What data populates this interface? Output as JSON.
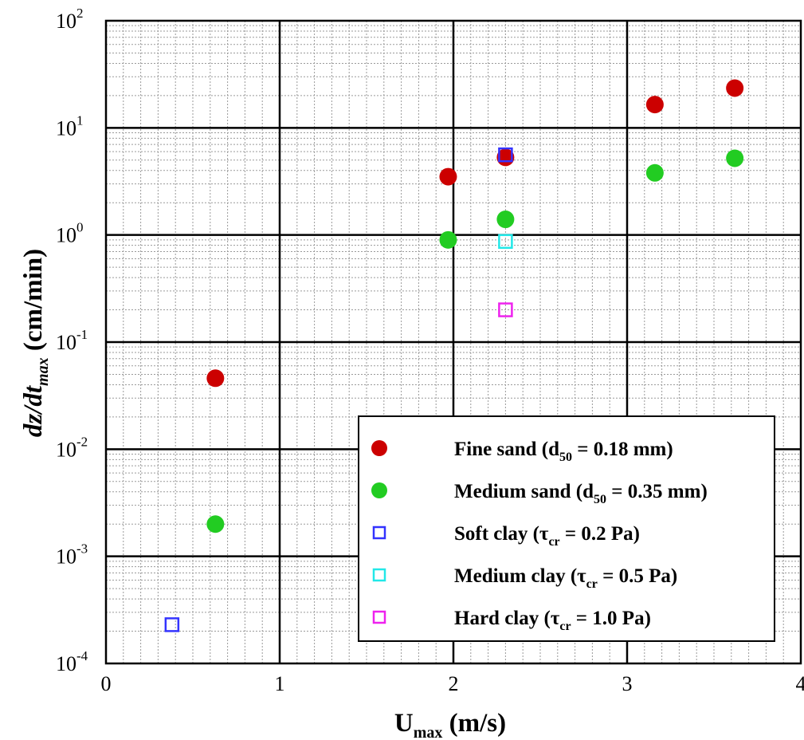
{
  "chart_data": {
    "type": "scatter",
    "title": "",
    "xlabel": {
      "main": "U",
      "sub": "max",
      "unit": " (m/s)"
    },
    "ylabel": {
      "main": "dz/dt",
      "sub": "max",
      "unit": " (cm/min)"
    },
    "xlim": [
      0,
      4
    ],
    "ylim": [
      0.0001,
      100
    ],
    "yscale": "log",
    "grid": true,
    "minor_grid": true,
    "legend_position": "lower-right",
    "x_ticks": [
      "0",
      "1",
      "2",
      "3",
      "4"
    ],
    "y_ticks": [
      {
        "base": "10",
        "exp": "2"
      },
      {
        "base": "10",
        "exp": "1"
      },
      {
        "base": "10",
        "exp": "0"
      },
      {
        "base": "10",
        "exp": "-1"
      },
      {
        "base": "10",
        "exp": "-2"
      },
      {
        "base": "10",
        "exp": "-3"
      },
      {
        "base": "10",
        "exp": "-4"
      }
    ],
    "series": [
      {
        "name": "Fine sand (d50 = 0.18 mm)",
        "label_parts": {
          "pre": "Fine sand (d",
          "sub": "50",
          "post": " = 0.18 mm)"
        },
        "marker": "circle",
        "color": "#cc0000",
        "points": [
          {
            "x": 0.63,
            "y": 0.046
          },
          {
            "x": 1.97,
            "y": 3.5
          },
          {
            "x": 2.3,
            "y": 5.3
          },
          {
            "x": 3.16,
            "y": 16.5
          },
          {
            "x": 3.62,
            "y": 23.5
          }
        ]
      },
      {
        "name": "Medium sand (d50 = 0.35 mm)",
        "label_parts": {
          "pre": "Medium sand (d",
          "sub": "50",
          "post": " = 0.35 mm)"
        },
        "marker": "circle",
        "color": "#22cc22",
        "points": [
          {
            "x": 0.63,
            "y": 0.002
          },
          {
            "x": 1.97,
            "y": 0.9
          },
          {
            "x": 2.3,
            "y": 1.4
          },
          {
            "x": 3.16,
            "y": 3.8
          },
          {
            "x": 3.62,
            "y": 5.2
          }
        ]
      },
      {
        "name": "Soft clay (τcr = 0.2 Pa)",
        "label_parts": {
          "pre": "Soft clay (τ",
          "sub": "cr",
          "post": " = 0.2 Pa)"
        },
        "marker": "square",
        "color": "#3333ff",
        "points": [
          {
            "x": 0.38,
            "y": 0.00023
          },
          {
            "x": 2.3,
            "y": 5.6
          }
        ]
      },
      {
        "name": "Medium clay (τcr = 0.5 Pa)",
        "label_parts": {
          "pre": "Medium clay (τ",
          "sub": "cr",
          "post": " = 0.5 Pa)"
        },
        "marker": "square",
        "color": "#22e8e8",
        "points": [
          {
            "x": 2.3,
            "y": 0.87
          }
        ]
      },
      {
        "name": "Hard clay (τcr = 1.0 Pa)",
        "label_parts": {
          "pre": "Hard clay (τ",
          "sub": "cr",
          "post": " = 1.0 Pa)"
        },
        "marker": "square",
        "color": "#ee22ee",
        "points": [
          {
            "x": 2.3,
            "y": 0.2
          }
        ]
      }
    ]
  }
}
